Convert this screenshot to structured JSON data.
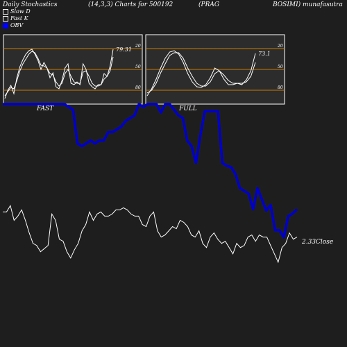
{
  "header": {
    "left": "Daily Stochastics",
    "center": "(14,3,3) Charts for 500192",
    "prag": "(PRAG",
    "right": "BOSIMI) munafasutra"
  },
  "legend": {
    "slow_d": "Slow  D",
    "fast_k": "Fast K",
    "obv": "OBV"
  },
  "colors": {
    "background": "#1e1e1e",
    "panel": "#2c2c2c",
    "level_line": "#cc7a00",
    "obv": "#0000cc",
    "line": "#ffffff"
  },
  "chart_data": [
    {
      "type": "line",
      "panel_label": "FAST",
      "value_label": "79.31",
      "ylim": [
        0,
        100
      ],
      "levels": [
        20,
        50,
        80
      ],
      "yticks": [
        "80",
        "50",
        "20"
      ],
      "series": [
        {
          "values": [
            8,
            20,
            27,
            15,
            38,
            54,
            64,
            72,
            77,
            79,
            72,
            63,
            50,
            60,
            52,
            38,
            45,
            25,
            22,
            34,
            52,
            58,
            30,
            28,
            32,
            28,
            58,
            50,
            30,
            25,
            22,
            28,
            28,
            44,
            40,
            55,
            79
          ]
        },
        {
          "values": [
            12,
            18,
            24,
            22,
            34,
            48,
            58,
            65,
            72,
            76,
            74,
            66,
            56,
            55,
            52,
            44,
            42,
            32,
            26,
            30,
            44,
            50,
            40,
            32,
            30,
            30,
            46,
            48,
            40,
            30,
            26,
            26,
            28,
            36,
            40,
            48,
            68
          ]
        }
      ]
    },
    {
      "type": "line",
      "panel_label": "FULL",
      "value_label": "73.1",
      "ylim": [
        0,
        100
      ],
      "levels": [
        20,
        50,
        80
      ],
      "yticks": [
        "80",
        "50",
        "20"
      ],
      "series": [
        {
          "values": [
            12,
            22,
            36,
            52,
            66,
            75,
            77,
            72,
            60,
            44,
            32,
            25,
            24,
            28,
            38,
            52,
            48,
            36,
            28,
            28,
            30,
            28,
            35,
            48,
            73
          ]
        },
        {
          "values": [
            16,
            20,
            30,
            45,
            58,
            70,
            74,
            74,
            66,
            52,
            40,
            30,
            26,
            26,
            32,
            44,
            48,
            42,
            34,
            30,
            30,
            30,
            32,
            40,
            60
          ]
        }
      ]
    },
    {
      "type": "line",
      "series": [
        {
          "name": "OBV",
          "values": [
            100,
            100,
            100,
            100,
            100,
            100,
            100,
            100,
            100,
            100,
            100,
            100,
            100,
            100,
            100,
            98,
            96,
            72,
            70,
            72,
            74,
            72,
            74,
            74,
            80,
            80,
            82,
            84,
            88,
            90,
            92,
            100,
            98,
            100,
            100,
            100,
            94,
            100,
            100,
            96,
            92,
            90,
            74,
            70,
            58,
            78,
            95,
            95,
            95,
            95,
            58,
            56,
            55,
            50,
            40,
            38,
            36,
            25,
            40,
            32,
            24,
            28,
            10,
            10,
            5,
            20,
            22,
            25
          ]
        }
      ]
    },
    {
      "type": "line",
      "value_label": "2.33Close",
      "series": [
        {
          "name": "Close",
          "values": [
            60,
            60,
            66,
            52,
            56,
            62,
            52,
            40,
            30,
            28,
            22,
            25,
            28,
            58,
            52,
            34,
            32,
            22,
            16,
            24,
            30,
            42,
            48,
            60,
            52,
            58,
            60,
            56,
            56,
            58,
            62,
            62,
            64,
            62,
            58,
            56,
            56,
            48,
            46,
            56,
            60,
            42,
            36,
            38,
            42,
            46,
            44,
            52,
            50,
            46,
            38,
            36,
            42,
            30,
            26,
            36,
            40,
            34,
            30,
            32,
            26,
            20,
            30,
            26,
            28,
            36,
            38,
            32,
            38,
            36,
            36,
            28,
            20,
            12,
            26,
            30,
            40,
            34,
            36
          ]
        }
      ]
    }
  ]
}
